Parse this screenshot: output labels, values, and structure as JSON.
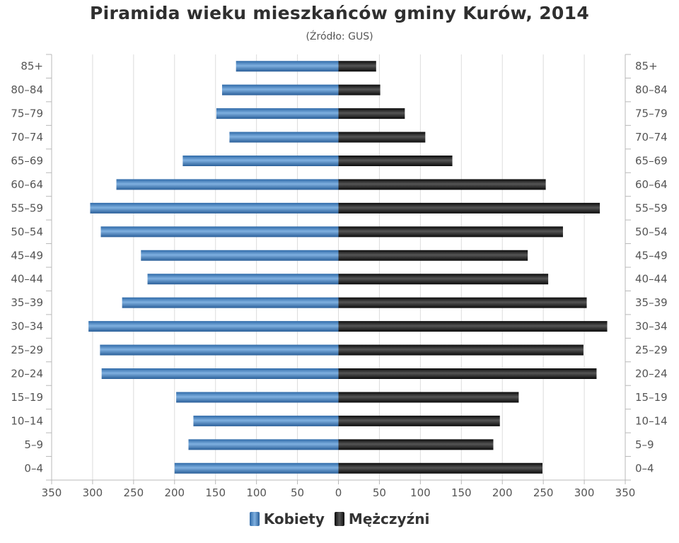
{
  "title": "Piramida wieku mieszkańców gminy Kurów, 2014",
  "subtitle": "(Źródło: GUS)",
  "colors": {
    "kobiety": "#3d78b6",
    "mezczyzni": "#1a1a1a",
    "grid": "#dcdcdc",
    "axis": "#b8b8b8"
  },
  "legend": [
    {
      "label": "Kobiety",
      "color": "#3d78b6"
    },
    {
      "label": "Mężczyźni",
      "color": "#1a1a1a"
    }
  ],
  "chart_data": {
    "type": "bar",
    "orientation": "horizontal-population-pyramid",
    "title": "Piramida wieku mieszkańców gminy Kurów, 2014",
    "subtitle": "(Źródło: GUS)",
    "categories": [
      "85+",
      "80–84",
      "75–79",
      "70–74",
      "65–69",
      "60–64",
      "55–59",
      "50–54",
      "45–49",
      "40–44",
      "35–39",
      "30–34",
      "25–29",
      "20–24",
      "15–19",
      "10–14",
      "5–9",
      "0–4"
    ],
    "series": [
      {
        "name": "Kobiety",
        "side": "left",
        "values": [
          125,
          142,
          149,
          133,
          190,
          271,
          303,
          290,
          241,
          233,
          264,
          305,
          291,
          289,
          198,
          177,
          183,
          200
        ]
      },
      {
        "name": "Mężczyźni",
        "side": "right",
        "values": [
          46,
          51,
          81,
          106,
          139,
          253,
          319,
          274,
          231,
          256,
          303,
          328,
          299,
          315,
          220,
          197,
          189,
          249
        ]
      }
    ],
    "x_ticks": [
      "350",
      "300",
      "250",
      "200",
      "150",
      "100",
      "50",
      "0",
      "50",
      "100",
      "150",
      "200",
      "250",
      "300",
      "350"
    ],
    "xlim": [
      -350,
      350
    ],
    "grid": true,
    "legend_position": "bottom"
  }
}
